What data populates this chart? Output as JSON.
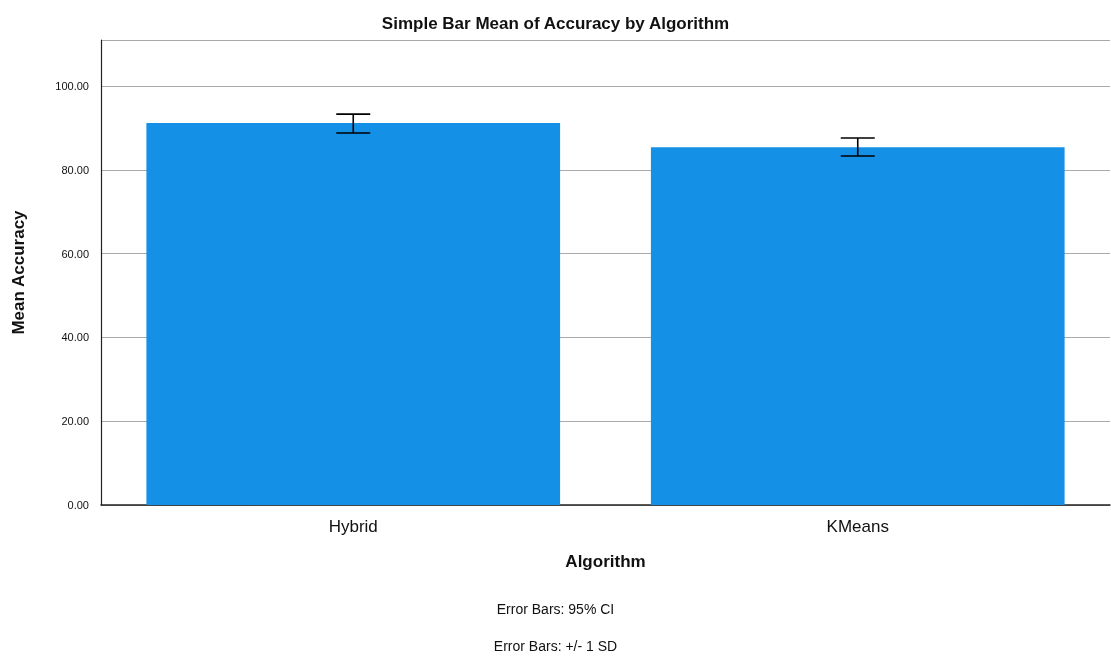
{
  "chart_data": {
    "type": "bar",
    "title": "Simple Bar Mean of Accuracy by Algorithm",
    "xlabel": "Algorithm",
    "ylabel": "Mean Accuracy",
    "categories": [
      "Hybrid",
      "KMeans"
    ],
    "values": [
      91.2,
      85.4
    ],
    "color": "#1490e6",
    "errors": [
      [
        88.8,
        93.3
      ],
      [
        83.3,
        87.6
      ]
    ],
    "ylim": [
      0,
      111
    ],
    "yticks": [
      {
        "value": 0,
        "label": "0.00"
      },
      {
        "value": 20,
        "label": "20.00"
      },
      {
        "value": 40,
        "label": "40.00"
      },
      {
        "value": 60,
        "label": "60.00"
      },
      {
        "value": 80,
        "label": "80.00"
      },
      {
        "value": 100,
        "label": "100.00"
      }
    ],
    "grid": "y",
    "annotations": [
      "Error Bars: 95% CI",
      "Error Bars: +/- 1 SD"
    ]
  }
}
